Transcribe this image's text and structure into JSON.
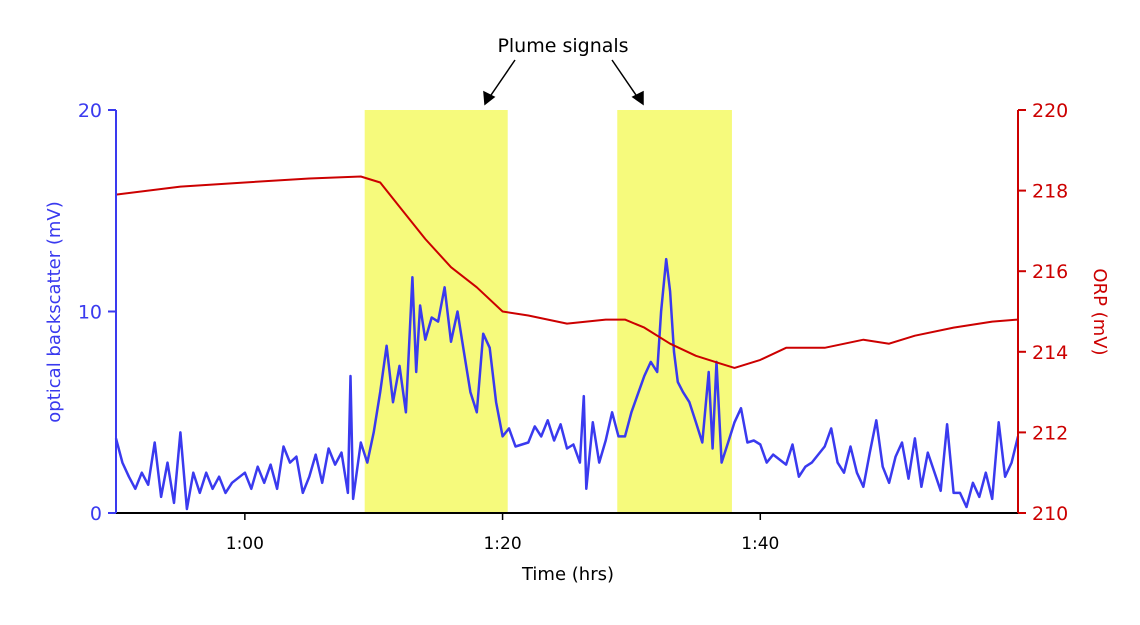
{
  "chart_data": {
    "type": "line",
    "title": "",
    "annotation": "Plume signals",
    "xlabel": "Time (hrs)",
    "x_unit": "minutes",
    "xlim": [
      50,
      120
    ],
    "x_ticks": [
      {
        "value": 60,
        "label": "1:00"
      },
      {
        "value": 80,
        "label": "1:20"
      },
      {
        "value": 100,
        "label": "1:40"
      }
    ],
    "highlight_bands": [
      [
        69.3,
        80.4
      ],
      [
        88.9,
        97.8
      ]
    ],
    "colors": {
      "left": "#3a3aef",
      "right": "#cc0000",
      "band": "#f6fa7c"
    },
    "left_axis": {
      "label": "optical backscatter (mV)",
      "ylim": [
        0,
        20
      ],
      "ticks": [
        0,
        10,
        20
      ]
    },
    "right_axis": {
      "label": "ORP (mV)",
      "ylim": [
        210,
        220
      ],
      "ticks": [
        210,
        212,
        214,
        216,
        218,
        220
      ]
    },
    "series": [
      {
        "name": "optical backscatter (mV)",
        "axis": "left",
        "x": [
          50,
          50.5,
          51,
          51.5,
          52,
          52.5,
          53,
          53.5,
          54,
          54.5,
          55,
          55.5,
          56,
          56.5,
          57,
          57.5,
          58,
          58.5,
          59,
          60,
          60.5,
          61,
          61.5,
          62,
          62.5,
          63,
          63.5,
          64,
          64.5,
          65,
          65.5,
          66,
          66.5,
          67,
          67.5,
          68,
          68.2,
          68.4,
          69,
          69.5,
          70,
          70.5,
          71,
          71.5,
          72,
          72.5,
          73,
          73.3,
          73.6,
          74,
          74.5,
          75,
          75.5,
          76,
          76.5,
          77,
          77.5,
          78,
          78.5,
          79,
          79.5,
          80,
          80.5,
          81,
          82,
          82.5,
          83,
          83.5,
          84,
          84.5,
          85,
          85.5,
          86,
          86.3,
          86.5,
          87,
          87.5,
          88,
          88.5,
          89,
          89.5,
          90,
          91,
          91.5,
          92,
          92.3,
          92.7,
          93,
          93.3,
          93.6,
          94,
          94.5,
          95,
          95.5,
          96,
          96.3,
          96.6,
          97,
          97.5,
          98,
          98.5,
          99,
          99.5,
          100,
          100.5,
          101,
          102,
          102.5,
          103,
          103.5,
          104,
          105,
          105.5,
          106,
          106.5,
          107,
          107.5,
          108,
          108.5,
          109,
          109.5,
          110,
          110.5,
          111,
          111.5,
          112,
          112.5,
          113,
          114,
          114.5,
          115,
          115.5,
          116,
          116.5,
          117,
          117.5,
          118,
          118.5,
          119,
          119.5,
          120
        ],
        "y": [
          3.7,
          2.5,
          1.8,
          1.2,
          2,
          1.4,
          3.5,
          0.8,
          2.5,
          0.5,
          4,
          0.2,
          2,
          1,
          2,
          1.2,
          1.8,
          1,
          1.5,
          2,
          1.2,
          2.3,
          1.5,
          2.4,
          1.2,
          3.3,
          2.5,
          2.8,
          1,
          1.8,
          2.9,
          1.5,
          3.2,
          2.4,
          3,
          1,
          6.8,
          0.7,
          3.5,
          2.5,
          4,
          6,
          8.3,
          5.5,
          7.3,
          5,
          11.7,
          7,
          10.3,
          8.6,
          9.7,
          9.5,
          11.2,
          8.5,
          10,
          8,
          6,
          5,
          8.9,
          8.2,
          5.5,
          3.8,
          4.2,
          3.3,
          3.5,
          4.3,
          3.8,
          4.6,
          3.6,
          4.4,
          3.2,
          3.4,
          2.5,
          5.8,
          1.2,
          4.5,
          2.5,
          3.6,
          5,
          3.8,
          3.8,
          5,
          6.8,
          7.5,
          7,
          10,
          12.6,
          11,
          8,
          6.5,
          6,
          5.5,
          4.5,
          3.5,
          7,
          3.2,
          7.5,
          2.5,
          3.5,
          4.5,
          5.2,
          3.5,
          3.6,
          3.4,
          2.5,
          2.9,
          2.4,
          3.4,
          1.8,
          2.3,
          2.5,
          3.3,
          4.2,
          2.5,
          2,
          3.3,
          2,
          1.3,
          3,
          4.6,
          2.3,
          1.5,
          2.8,
          3.5,
          1.7,
          3.7,
          1.3,
          3,
          1.1,
          4.4,
          1,
          1,
          0.3,
          1.5,
          0.8,
          2,
          0.7,
          4.5,
          1.8,
          2.5,
          3.8
        ]
      },
      {
        "name": "ORP (mV)",
        "axis": "right",
        "x": [
          50,
          55,
          60,
          65,
          69,
          70.5,
          72,
          74,
          76,
          78,
          80,
          82,
          85,
          88,
          89.5,
          91,
          93,
          95,
          97,
          98,
          100,
          102,
          105,
          108,
          110,
          112,
          115,
          118,
          120
        ],
        "y": [
          217.9,
          218.1,
          218.2,
          218.3,
          218.35,
          218.2,
          217.6,
          216.8,
          216.1,
          215.6,
          215,
          214.9,
          214.7,
          214.8,
          214.8,
          214.6,
          214.2,
          213.9,
          213.7,
          213.6,
          213.8,
          214.1,
          214.1,
          214.3,
          214.2,
          214.4,
          214.6,
          214.75,
          214.8
        ]
      }
    ]
  }
}
